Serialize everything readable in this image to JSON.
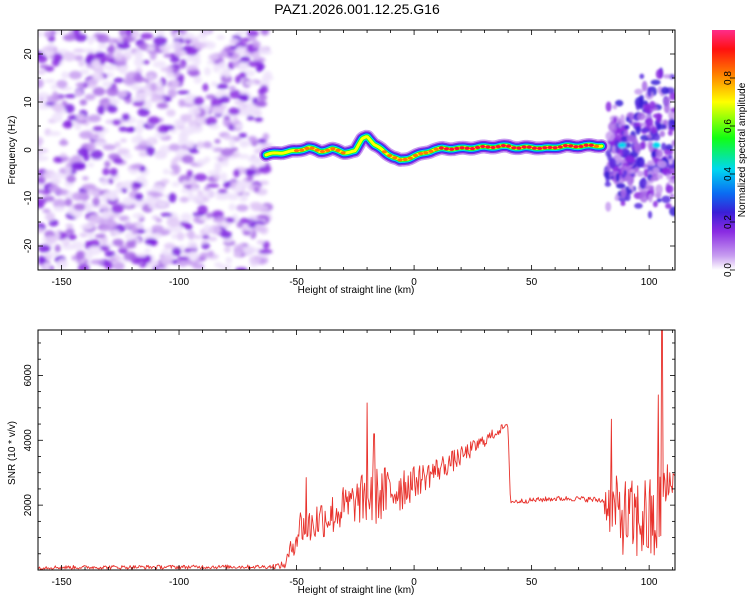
{
  "page_title": "PAZ1.2026.001.12.25.G16",
  "colorbar": {
    "label": "Normalized spectral amplitude",
    "ticks": [
      "0.0",
      "0.2",
      "0.4",
      "0.6",
      "0.8"
    ],
    "tick_values": [
      0.0,
      0.2,
      0.4,
      0.6,
      0.8
    ],
    "range": [
      0,
      1
    ],
    "colors": [
      "#ffffff",
      "#c79cf0",
      "#8a2be2",
      "#3a1fd6",
      "#0a6cf2",
      "#00d8f0",
      "#12ff12",
      "#ffff00",
      "#ff7a00",
      "#ff1010",
      "#ff2c8a"
    ]
  },
  "chart_data": [
    {
      "name": "spectrogram",
      "type": "heatmap",
      "xlabel": "Height of straight line (km)",
      "ylabel": "Frequency (Hz)",
      "xlim": [
        -160,
        111
      ],
      "ylim": [
        -25,
        25
      ],
      "xticks": [
        -150,
        -100,
        -50,
        0,
        50,
        100
      ],
      "xtick_labels": [
        "-150",
        "-100",
        "-50",
        "0",
        "50",
        "100"
      ],
      "yticks": [
        -20,
        -10,
        0,
        10,
        20
      ],
      "ytick_labels": [
        "-20",
        "-10",
        "0",
        "10",
        "20"
      ],
      "noise_region": {
        "x": [
          -160,
          -62
        ],
        "y": [
          -25,
          25
        ],
        "amplitude": 0.1
      },
      "ridge": {
        "x": [
          -63,
          -58,
          -50,
          -45,
          -40,
          -35,
          -30,
          -25,
          -22,
          -20,
          -17,
          -14,
          -12,
          -9,
          -6,
          -3,
          0,
          4,
          8,
          12,
          20,
          30,
          40,
          45,
          50,
          55,
          60,
          65,
          70,
          75,
          80
        ],
        "freq": [
          -1.0,
          -0.6,
          -0.2,
          0.5,
          -0.3,
          0.2,
          -0.5,
          -0.3,
          2.5,
          3.0,
          1.0,
          0.2,
          -0.5,
          -1.5,
          -2.2,
          -1.8,
          -1.3,
          -0.7,
          0.0,
          0.3,
          0.3,
          0.6,
          0.8,
          0.4,
          0.6,
          0.3,
          0.6,
          0.8,
          0.8,
          0.9,
          0.9
        ],
        "amplitude": [
          0.3,
          0.5,
          0.75,
          0.8,
          0.85,
          0.75,
          0.8,
          0.6,
          0.55,
          0.5,
          0.6,
          0.7,
          0.75,
          0.75,
          0.8,
          0.8,
          0.75,
          0.8,
          0.85,
          0.9,
          0.95,
          0.95,
          0.9,
          0.9,
          0.9,
          0.9,
          0.9,
          0.9,
          0.9,
          0.9,
          0.85
        ]
      },
      "clusters": [
        {
          "x": [
            82,
            95
          ],
          "y": [
            -12,
            10
          ],
          "amplitude": 0.2
        },
        {
          "x": [
            95,
            111
          ],
          "y": [
            -14,
            18
          ],
          "amplitude": 0.25
        }
      ]
    },
    {
      "name": "snr",
      "type": "line",
      "xlabel": "Height of straight line (km)",
      "ylabel": "SNR (10 * v/v)",
      "xlim": [
        -160,
        111
      ],
      "ylim": [
        0,
        7400
      ],
      "xticks": [
        -150,
        -100,
        -50,
        0,
        50,
        100
      ],
      "xtick_labels": [
        "-150",
        "-100",
        "-50",
        "0",
        "50",
        "100"
      ],
      "yticks": [
        2000,
        4000,
        6000
      ],
      "ytick_labels": [
        "2000",
        "4000",
        "6000"
      ],
      "color": "#e8322c",
      "series": [
        {
          "name": "SNR",
          "x": [
            -160,
            -62,
            -55,
            -52,
            -48,
            -45,
            -40,
            -35,
            -30,
            -25,
            -20,
            -15,
            -10,
            -5,
            0,
            10,
            20,
            30,
            38,
            40,
            41,
            50,
            60,
            70,
            80,
            83,
            88,
            93,
            98,
            102,
            106,
            111
          ],
          "values": [
            80,
            100,
            150,
            700,
            1400,
            1300,
            1600,
            1700,
            1900,
            2100,
            2200,
            2300,
            2400,
            2600,
            2700,
            3100,
            3500,
            4000,
            4400,
            4400,
            2100,
            2150,
            2200,
            2200,
            2150,
            2000,
            1700,
            1500,
            1600,
            1300,
            2300,
            2900
          ],
          "noise": [
            60,
            60,
            120,
            350,
            600,
            600,
            650,
            650,
            700,
            650,
            900,
            900,
            850,
            800,
            500,
            400,
            300,
            200,
            120,
            100,
            80,
            80,
            80,
            80,
            100,
            900,
            1200,
            1300,
            1400,
            1500,
            1200,
            150
          ]
        },
        {
          "name": "spikes",
          "x": [
            -46,
            -20,
            -17,
            84,
            104,
            105.5
          ],
          "values": [
            2850,
            5150,
            4200,
            4650,
            5400,
            7400
          ]
        }
      ]
    }
  ]
}
